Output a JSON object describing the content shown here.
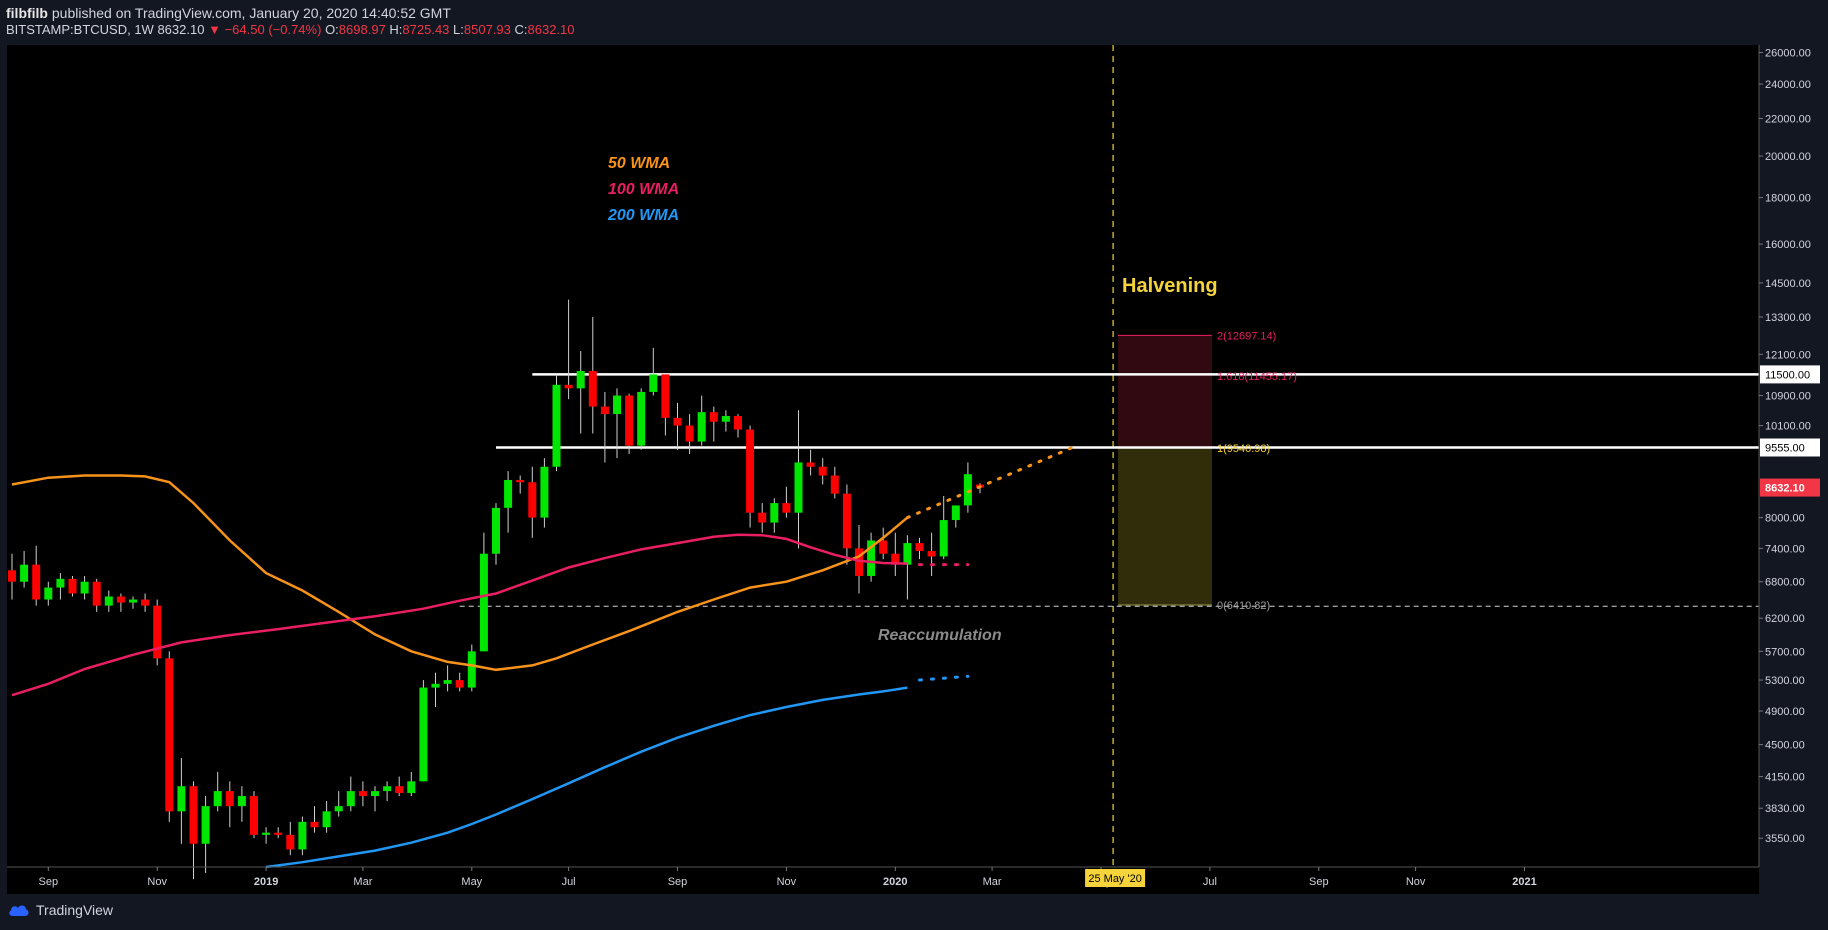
{
  "header": {
    "publisher": "filbfilb",
    "published_text": "published on TradingView.com, January 20, 2020 14:40:52 GMT",
    "symbol": "BITSTAMP:BTCUSD, 1W",
    "price": "8632.10",
    "change": "−64.50 (−0.74%)",
    "o_label": "O:",
    "o_value": "8698.97",
    "h_label": "H:",
    "h_value": "8725.43",
    "l_label": "L:",
    "l_value": "8507.93",
    "c_label": "C:",
    "c_value": "8632.10"
  },
  "footer": {
    "brand": "TradingView"
  },
  "colors": {
    "up": "#00e600",
    "down": "#ff0000",
    "wma50": "#f7931a",
    "wma100": "#e91e63",
    "wma200": "#2196f3",
    "bg": "#000000"
  },
  "chart_data": {
    "type": "candlestick",
    "title": "",
    "y_scale": "log",
    "ylim": [
      3300,
      26500
    ],
    "y_ticks": [
      3550,
      3830,
      4150,
      4500,
      4900,
      5300,
      5700,
      6200,
      6800,
      7400,
      8000,
      8632.1,
      9555,
      10100,
      10900,
      11500,
      12100,
      13300,
      14500,
      16000,
      18000,
      20000,
      22000,
      24000,
      26000
    ],
    "y_tick_labels": [
      "3550.00",
      "3830.00",
      "4150.00",
      "4500.00",
      "4900.00",
      "5300.00",
      "5700.00",
      "6200.00",
      "6800.00",
      "7400.00",
      "8000.00",
      "8632.10",
      "9555.00",
      "10100.00",
      "10900.00",
      "11500.00",
      "12100.00",
      "13300.00",
      "14500.00",
      "16000.00",
      "18000.00",
      "20000.00",
      "22000.00",
      "24000.00",
      "26000.00"
    ],
    "x_ticks": [
      {
        "label": "Sep",
        "week": 3
      },
      {
        "label": "Nov",
        "week": 12
      },
      {
        "label": "2019",
        "week": 21
      },
      {
        "label": "Mar",
        "week": 29
      },
      {
        "label": "May",
        "week": 38
      },
      {
        "label": "Jul",
        "week": 46
      },
      {
        "label": "Sep",
        "week": 55
      },
      {
        "label": "Nov",
        "week": 64
      },
      {
        "label": "2020",
        "week": 73
      },
      {
        "label": "Mar",
        "week": 81
      },
      {
        "label": "May",
        "week": 90
      },
      {
        "label": "Jul",
        "week": 99
      },
      {
        "label": "Sep",
        "week": 108
      },
      {
        "label": "Nov",
        "week": 116
      },
      {
        "label": "2021",
        "week": 125
      }
    ],
    "candles": [
      [
        7000,
        7300,
        6500,
        6800
      ],
      [
        6800,
        7350,
        6700,
        7100
      ],
      [
        7100,
        7450,
        6400,
        6500
      ],
      [
        6500,
        6800,
        6400,
        6700
      ],
      [
        6700,
        6950,
        6500,
        6850
      ],
      [
        6850,
        6900,
        6550,
        6600
      ],
      [
        6600,
        6900,
        6500,
        6800
      ],
      [
        6800,
        6850,
        6300,
        6400
      ],
      [
        6400,
        6650,
        6300,
        6550
      ],
      [
        6550,
        6600,
        6300,
        6450
      ],
      [
        6450,
        6550,
        6350,
        6500
      ],
      [
        6500,
        6600,
        6300,
        6400
      ],
      [
        6400,
        6500,
        5500,
        5600
      ],
      [
        5600,
        5700,
        3700,
        3800
      ],
      [
        3800,
        4350,
        3500,
        4050
      ],
      [
        4050,
        4100,
        3200,
        3500
      ],
      [
        3500,
        3950,
        3250,
        3850
      ],
      [
        3850,
        4200,
        3800,
        4000
      ],
      [
        4000,
        4100,
        3650,
        3850
      ],
      [
        3850,
        4050,
        3700,
        3950
      ],
      [
        3950,
        4000,
        3550,
        3580
      ],
      [
        3580,
        3650,
        3500,
        3600
      ],
      [
        3600,
        3650,
        3550,
        3580
      ],
      [
        3580,
        3700,
        3400,
        3450
      ],
      [
        3450,
        3750,
        3400,
        3700
      ],
      [
        3700,
        3850,
        3600,
        3650
      ],
      [
        3650,
        3900,
        3600,
        3800
      ],
      [
        3800,
        4000,
        3750,
        3850
      ],
      [
        3850,
        4150,
        3800,
        4000
      ],
      [
        4000,
        4100,
        3850,
        3950
      ],
      [
        3950,
        4050,
        3800,
        4000
      ],
      [
        4000,
        4100,
        3900,
        4050
      ],
      [
        4050,
        4150,
        3950,
        3980
      ],
      [
        3980,
        4200,
        3950,
        4100
      ],
      [
        4100,
        5300,
        4100,
        5200
      ],
      [
        5200,
        5400,
        4950,
        5250
      ],
      [
        5250,
        5500,
        5150,
        5300
      ],
      [
        5300,
        5400,
        5150,
        5200
      ],
      [
        5200,
        5800,
        5150,
        5700
      ],
      [
        5700,
        7700,
        5700,
        7300
      ],
      [
        7300,
        8300,
        7100,
        8200
      ],
      [
        8200,
        9000,
        7700,
        8800
      ],
      [
        8800,
        8900,
        8500,
        8750
      ],
      [
        8750,
        9100,
        7600,
        8000
      ],
      [
        8000,
        9300,
        7800,
        9100
      ],
      [
        9100,
        11500,
        9000,
        11200
      ],
      [
        11200,
        13900,
        10800,
        11100
      ],
      [
        11100,
        12200,
        9900,
        11600
      ],
      [
        11600,
        13300,
        9900,
        10600
      ],
      [
        10600,
        11000,
        9200,
        10400
      ],
      [
        10400,
        11100,
        9300,
        10900
      ],
      [
        10900,
        10950,
        9400,
        9600
      ],
      [
        9600,
        11100,
        9500,
        11000
      ],
      [
        11000,
        12300,
        10900,
        11500
      ],
      [
        11500,
        11500,
        9850,
        10300
      ],
      [
        10300,
        10700,
        9500,
        10100
      ],
      [
        10100,
        10400,
        9400,
        9700
      ],
      [
        9700,
        10900,
        9600,
        10450
      ],
      [
        10450,
        10600,
        9700,
        10200
      ],
      [
        10200,
        10500,
        9950,
        10350
      ],
      [
        10350,
        10400,
        9800,
        10000
      ],
      [
        10000,
        10100,
        7800,
        8100
      ],
      [
        8100,
        8300,
        7700,
        7900
      ],
      [
        7900,
        8400,
        7700,
        8300
      ],
      [
        8300,
        8650,
        8000,
        8100
      ],
      [
        8100,
        10500,
        7400,
        9200
      ],
      [
        9200,
        9500,
        8900,
        9100
      ],
      [
        9100,
        9300,
        8700,
        8900
      ],
      [
        8900,
        9100,
        8400,
        8500
      ],
      [
        8500,
        8700,
        7100,
        7400
      ],
      [
        7400,
        7850,
        6600,
        6900
      ],
      [
        6900,
        7700,
        6800,
        7550
      ],
      [
        7550,
        7800,
        7200,
        7300
      ],
      [
        7300,
        7700,
        6900,
        7100
      ],
      [
        7100,
        7650,
        6500,
        7500
      ],
      [
        7500,
        7600,
        7200,
        7350
      ],
      [
        7350,
        7700,
        6900,
        7250
      ],
      [
        7250,
        8450,
        7200,
        7950
      ],
      [
        7950,
        8200,
        7800,
        8250
      ],
      [
        8250,
        9200,
        8100,
        8930
      ],
      [
        8698.97,
        8725.43,
        8507.93,
        8632.1
      ]
    ],
    "wma50": [
      [
        0,
        8700
      ],
      [
        3,
        8850
      ],
      [
        6,
        8900
      ],
      [
        9,
        8900
      ],
      [
        11,
        8880
      ],
      [
        13,
        8750
      ],
      [
        15,
        8300
      ],
      [
        18,
        7550
      ],
      [
        21,
        6950
      ],
      [
        24,
        6650
      ],
      [
        27,
        6300
      ],
      [
        30,
        5950
      ],
      [
        33,
        5700
      ],
      [
        36,
        5550
      ],
      [
        38,
        5500
      ],
      [
        40,
        5440
      ],
      [
        43,
        5500
      ],
      [
        45,
        5600
      ],
      [
        48,
        5800
      ],
      [
        51,
        6000
      ],
      [
        55,
        6300
      ],
      [
        58,
        6500
      ],
      [
        61,
        6700
      ],
      [
        64,
        6800
      ],
      [
        67,
        7000
      ],
      [
        70,
        7250
      ],
      [
        72,
        7600
      ],
      [
        74,
        8000
      ]
    ],
    "wma100": [
      [
        0,
        5100
      ],
      [
        3,
        5250
      ],
      [
        6,
        5450
      ],
      [
        10,
        5650
      ],
      [
        14,
        5830
      ],
      [
        18,
        5940
      ],
      [
        22,
        6030
      ],
      [
        26,
        6130
      ],
      [
        30,
        6230
      ],
      [
        34,
        6350
      ],
      [
        37,
        6480
      ],
      [
        40,
        6600
      ],
      [
        43,
        6820
      ],
      [
        46,
        7050
      ],
      [
        49,
        7220
      ],
      [
        52,
        7380
      ],
      [
        55,
        7500
      ],
      [
        58,
        7620
      ],
      [
        60,
        7660
      ],
      [
        62,
        7650
      ],
      [
        64,
        7580
      ],
      [
        66,
        7420
      ],
      [
        68,
        7280
      ],
      [
        70,
        7170
      ],
      [
        72,
        7130
      ],
      [
        74,
        7120
      ]
    ],
    "wma200": [
      [
        21,
        3300
      ],
      [
        24,
        3340
      ],
      [
        27,
        3390
      ],
      [
        30,
        3440
      ],
      [
        33,
        3510
      ],
      [
        36,
        3600
      ],
      [
        38,
        3680
      ],
      [
        40,
        3770
      ],
      [
        43,
        3920
      ],
      [
        46,
        4080
      ],
      [
        49,
        4250
      ],
      [
        52,
        4420
      ],
      [
        55,
        4580
      ],
      [
        58,
        4720
      ],
      [
        61,
        4850
      ],
      [
        64,
        4950
      ],
      [
        67,
        5040
      ],
      [
        70,
        5110
      ],
      [
        72,
        5150
      ],
      [
        74,
        5200
      ]
    ],
    "projections": {
      "wma50": [
        [
          74,
          8000
        ],
        [
          88,
          9600
        ]
      ],
      "wma100": [
        [
          75,
          7100
        ],
        [
          79,
          7100
        ]
      ],
      "wma200": [
        [
          75,
          5300
        ],
        [
          79,
          5350
        ]
      ]
    },
    "legend": [
      {
        "name": "50 WMA",
        "color": "#f7931a"
      },
      {
        "name": "100 WMA",
        "color": "#e91e63"
      },
      {
        "name": "200 WMA",
        "color": "#2196f3"
      }
    ],
    "annotations": {
      "halvening": "Halvening",
      "reaccumulation": "Reaccumulation",
      "halvening_date": "25 May '20",
      "fib_labels": [
        "2(12697.14)",
        "1.618(11455.17)",
        "1(9540.98)",
        "0(6410.82)"
      ]
    },
    "levels": {
      "resistance_high": 11500,
      "resistance_mid": 9555,
      "support": 6389.44,
      "fib_2": 12697.14,
      "fib_1618": 11455.17,
      "fib_1": 9540.98,
      "fib_0": 6410.82
    },
    "halvening_week": 91
  }
}
